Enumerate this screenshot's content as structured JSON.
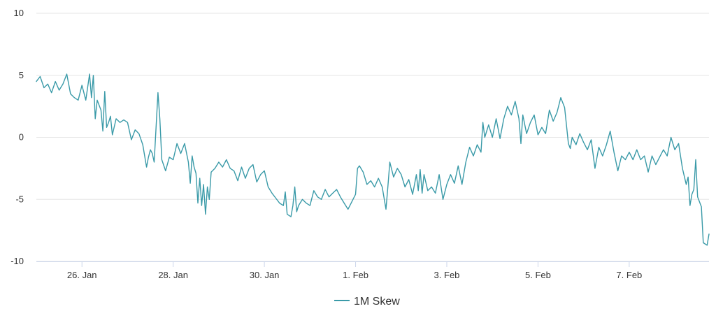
{
  "chart_data": {
    "type": "line",
    "title": "",
    "xlabel": "",
    "ylabel": "",
    "ylim": [
      -10,
      10
    ],
    "y_ticks": [
      10,
      5,
      0,
      -5,
      -10
    ],
    "x_range": [
      "2023-01-25 00:00",
      "2023-02-08 18:00"
    ],
    "x_ticks": [
      {
        "label": "26. Jan",
        "date": "2023-01-26"
      },
      {
        "label": "28. Jan",
        "date": "2023-01-28"
      },
      {
        "label": "30. Jan",
        "date": "2023-01-30"
      },
      {
        "label": "1. Feb",
        "date": "2023-02-01"
      },
      {
        "label": "3. Feb",
        "date": "2023-02-03"
      },
      {
        "label": "5. Feb",
        "date": "2023-02-05"
      },
      {
        "label": "7. Feb",
        "date": "2023-02-07"
      }
    ],
    "grid": "horizontal",
    "legend_position": "bottom-center",
    "series": [
      {
        "name": "1M Skew",
        "color": "#3a9aa8",
        "points": [
          [
            "2023-01-25 00:00",
            4.5
          ],
          [
            "2023-01-25 02:00",
            4.9
          ],
          [
            "2023-01-25 04:00",
            4.0
          ],
          [
            "2023-01-25 06:00",
            4.3
          ],
          [
            "2023-01-25 08:00",
            3.6
          ],
          [
            "2023-01-25 10:00",
            4.5
          ],
          [
            "2023-01-25 12:00",
            3.8
          ],
          [
            "2023-01-25 14:00",
            4.3
          ],
          [
            "2023-01-25 16:00",
            5.1
          ],
          [
            "2023-01-25 18:00",
            3.5
          ],
          [
            "2023-01-25 20:00",
            3.2
          ],
          [
            "2023-01-25 22:00",
            3.0
          ],
          [
            "2023-01-26 00:00",
            4.2
          ],
          [
            "2023-01-26 02:00",
            3.0
          ],
          [
            "2023-01-26 04:00",
            5.1
          ],
          [
            "2023-01-26 05:00",
            3.2
          ],
          [
            "2023-01-26 06:00",
            5.0
          ],
          [
            "2023-01-26 07:00",
            1.5
          ],
          [
            "2023-01-26 08:00",
            3.0
          ],
          [
            "2023-01-26 10:00",
            2.2
          ],
          [
            "2023-01-26 11:00",
            0.5
          ],
          [
            "2023-01-26 12:00",
            3.7
          ],
          [
            "2023-01-26 13:00",
            0.8
          ],
          [
            "2023-01-26 14:00",
            1.2
          ],
          [
            "2023-01-26 15:00",
            1.7
          ],
          [
            "2023-01-26 16:00",
            0.2
          ],
          [
            "2023-01-26 18:00",
            1.5
          ],
          [
            "2023-01-26 20:00",
            1.2
          ],
          [
            "2023-01-26 22:00",
            1.4
          ],
          [
            "2023-01-27 00:00",
            1.2
          ],
          [
            "2023-01-27 02:00",
            -0.2
          ],
          [
            "2023-01-27 04:00",
            0.6
          ],
          [
            "2023-01-27 06:00",
            0.3
          ],
          [
            "2023-01-27 08:00",
            -0.6
          ],
          [
            "2023-01-27 10:00",
            -2.4
          ],
          [
            "2023-01-27 11:00",
            -1.6
          ],
          [
            "2023-01-27 12:00",
            -1.0
          ],
          [
            "2023-01-27 13:00",
            -1.3
          ],
          [
            "2023-01-27 14:00",
            -2.0
          ],
          [
            "2023-01-27 16:00",
            3.6
          ],
          [
            "2023-01-27 17:00",
            1.5
          ],
          [
            "2023-01-27 18:00",
            -1.8
          ],
          [
            "2023-01-27 20:00",
            -2.7
          ],
          [
            "2023-01-27 22:00",
            -1.6
          ],
          [
            "2023-01-28 00:00",
            -1.8
          ],
          [
            "2023-01-28 02:00",
            -0.5
          ],
          [
            "2023-01-28 04:00",
            -1.3
          ],
          [
            "2023-01-28 06:00",
            -0.5
          ],
          [
            "2023-01-28 08:00",
            -2.0
          ],
          [
            "2023-01-28 09:00",
            -3.7
          ],
          [
            "2023-01-28 10:00",
            -1.5
          ],
          [
            "2023-01-28 11:00",
            -2.4
          ],
          [
            "2023-01-28 12:00",
            -2.9
          ],
          [
            "2023-01-28 13:00",
            -5.3
          ],
          [
            "2023-01-28 14:00",
            -3.3
          ],
          [
            "2023-01-28 15:00",
            -5.5
          ],
          [
            "2023-01-28 16:00",
            -3.8
          ],
          [
            "2023-01-28 17:00",
            -6.2
          ],
          [
            "2023-01-28 18:00",
            -4.0
          ],
          [
            "2023-01-28 19:00",
            -5.0
          ],
          [
            "2023-01-28 20:00",
            -2.8
          ],
          [
            "2023-01-28 22:00",
            -2.5
          ],
          [
            "2023-01-29 00:00",
            -2.0
          ],
          [
            "2023-01-29 02:00",
            -2.4
          ],
          [
            "2023-01-29 04:00",
            -1.8
          ],
          [
            "2023-01-29 06:00",
            -2.5
          ],
          [
            "2023-01-29 08:00",
            -2.7
          ],
          [
            "2023-01-29 10:00",
            -3.5
          ],
          [
            "2023-01-29 12:00",
            -2.4
          ],
          [
            "2023-01-29 14:00",
            -3.3
          ],
          [
            "2023-01-29 16:00",
            -2.5
          ],
          [
            "2023-01-29 18:00",
            -2.2
          ],
          [
            "2023-01-29 20:00",
            -3.6
          ],
          [
            "2023-01-29 22:00",
            -3.0
          ],
          [
            "2023-01-30 00:00",
            -2.7
          ],
          [
            "2023-01-30 02:00",
            -4.0
          ],
          [
            "2023-01-30 04:00",
            -4.5
          ],
          [
            "2023-01-30 06:00",
            -4.9
          ],
          [
            "2023-01-30 08:00",
            -5.3
          ],
          [
            "2023-01-30 10:00",
            -5.5
          ],
          [
            "2023-01-30 11:00",
            -4.4
          ],
          [
            "2023-01-30 12:00",
            -6.2
          ],
          [
            "2023-01-30 14:00",
            -6.4
          ],
          [
            "2023-01-30 15:00",
            -5.5
          ],
          [
            "2023-01-30 16:00",
            -4.0
          ],
          [
            "2023-01-30 17:00",
            -6.0
          ],
          [
            "2023-01-30 18:00",
            -5.5
          ],
          [
            "2023-01-30 20:00",
            -5.0
          ],
          [
            "2023-01-30 22:00",
            -5.3
          ],
          [
            "2023-01-31 00:00",
            -5.5
          ],
          [
            "2023-01-31 02:00",
            -4.3
          ],
          [
            "2023-01-31 04:00",
            -4.8
          ],
          [
            "2023-01-31 06:00",
            -5.0
          ],
          [
            "2023-01-31 08:00",
            -4.2
          ],
          [
            "2023-01-31 10:00",
            -4.8
          ],
          [
            "2023-01-31 12:00",
            -4.5
          ],
          [
            "2023-01-31 14:00",
            -4.2
          ],
          [
            "2023-01-31 16:00",
            -4.8
          ],
          [
            "2023-01-31 18:00",
            -5.3
          ],
          [
            "2023-01-31 20:00",
            -5.8
          ],
          [
            "2023-01-31 22:00",
            -5.2
          ],
          [
            "2023-02-01 00:00",
            -4.6
          ],
          [
            "2023-02-01 01:00",
            -2.5
          ],
          [
            "2023-02-01 02:00",
            -2.3
          ],
          [
            "2023-02-01 04:00",
            -2.8
          ],
          [
            "2023-02-01 06:00",
            -3.8
          ],
          [
            "2023-02-01 08:00",
            -3.5
          ],
          [
            "2023-02-01 10:00",
            -4.0
          ],
          [
            "2023-02-01 12:00",
            -3.3
          ],
          [
            "2023-02-01 14:00",
            -4.0
          ],
          [
            "2023-02-01 16:00",
            -5.8
          ],
          [
            "2023-02-01 17:00",
            -4.0
          ],
          [
            "2023-02-01 18:00",
            -2.0
          ],
          [
            "2023-02-01 20:00",
            -3.2
          ],
          [
            "2023-02-01 22:00",
            -2.5
          ],
          [
            "2023-02-02 00:00",
            -3.0
          ],
          [
            "2023-02-02 02:00",
            -4.0
          ],
          [
            "2023-02-02 04:00",
            -3.4
          ],
          [
            "2023-02-02 06:00",
            -4.6
          ],
          [
            "2023-02-02 08:00",
            -3.0
          ],
          [
            "2023-02-02 09:00",
            -4.3
          ],
          [
            "2023-02-02 10:00",
            -2.6
          ],
          [
            "2023-02-02 11:00",
            -4.5
          ],
          [
            "2023-02-02 12:00",
            -3.0
          ],
          [
            "2023-02-02 14:00",
            -4.3
          ],
          [
            "2023-02-02 16:00",
            -4.0
          ],
          [
            "2023-02-02 18:00",
            -4.5
          ],
          [
            "2023-02-02 20:00",
            -3.0
          ],
          [
            "2023-02-02 22:00",
            -5.0
          ],
          [
            "2023-02-03 00:00",
            -3.8
          ],
          [
            "2023-02-03 02:00",
            -3.0
          ],
          [
            "2023-02-03 04:00",
            -3.7
          ],
          [
            "2023-02-03 06:00",
            -2.3
          ],
          [
            "2023-02-03 08:00",
            -3.8
          ],
          [
            "2023-02-03 10:00",
            -2.0
          ],
          [
            "2023-02-03 12:00",
            -0.8
          ],
          [
            "2023-02-03 14:00",
            -1.5
          ],
          [
            "2023-02-03 16:00",
            -0.6
          ],
          [
            "2023-02-03 18:00",
            -1.2
          ],
          [
            "2023-02-03 19:00",
            1.2
          ],
          [
            "2023-02-03 20:00",
            0.0
          ],
          [
            "2023-02-03 22:00",
            1.0
          ],
          [
            "2023-02-04 00:00",
            0.0
          ],
          [
            "2023-02-04 02:00",
            1.5
          ],
          [
            "2023-02-04 04:00",
            -0.1
          ],
          [
            "2023-02-04 06:00",
            1.5
          ],
          [
            "2023-02-04 08:00",
            2.5
          ],
          [
            "2023-02-04 10:00",
            1.8
          ],
          [
            "2023-02-04 12:00",
            2.9
          ],
          [
            "2023-02-04 14:00",
            1.5
          ],
          [
            "2023-02-04 15:00",
            -0.5
          ],
          [
            "2023-02-04 16:00",
            1.8
          ],
          [
            "2023-02-04 18:00",
            0.3
          ],
          [
            "2023-02-04 20:00",
            1.2
          ],
          [
            "2023-02-04 22:00",
            1.8
          ],
          [
            "2023-02-05 00:00",
            0.2
          ],
          [
            "2023-02-05 02:00",
            0.8
          ],
          [
            "2023-02-05 04:00",
            0.3
          ],
          [
            "2023-02-05 06:00",
            2.2
          ],
          [
            "2023-02-05 08:00",
            1.3
          ],
          [
            "2023-02-05 10:00",
            2.0
          ],
          [
            "2023-02-05 12:00",
            3.2
          ],
          [
            "2023-02-05 14:00",
            2.4
          ],
          [
            "2023-02-05 16:00",
            -0.5
          ],
          [
            "2023-02-05 17:00",
            -0.9
          ],
          [
            "2023-02-05 18:00",
            0.0
          ],
          [
            "2023-02-05 20:00",
            -0.6
          ],
          [
            "2023-02-05 22:00",
            0.3
          ],
          [
            "2023-02-06 00:00",
            -0.4
          ],
          [
            "2023-02-06 02:00",
            -1.0
          ],
          [
            "2023-02-06 04:00",
            -0.2
          ],
          [
            "2023-02-06 06:00",
            -2.5
          ],
          [
            "2023-02-06 08:00",
            -0.8
          ],
          [
            "2023-02-06 10:00",
            -1.5
          ],
          [
            "2023-02-06 12:00",
            -0.6
          ],
          [
            "2023-02-06 14:00",
            0.5
          ],
          [
            "2023-02-06 16:00",
            -1.2
          ],
          [
            "2023-02-06 18:00",
            -2.7
          ],
          [
            "2023-02-06 20:00",
            -1.5
          ],
          [
            "2023-02-06 22:00",
            -1.8
          ],
          [
            "2023-02-07 00:00",
            -1.2
          ],
          [
            "2023-02-07 02:00",
            -1.8
          ],
          [
            "2023-02-07 04:00",
            -1.0
          ],
          [
            "2023-02-07 06:00",
            -1.8
          ],
          [
            "2023-02-07 08:00",
            -1.5
          ],
          [
            "2023-02-07 10:00",
            -2.8
          ],
          [
            "2023-02-07 12:00",
            -1.5
          ],
          [
            "2023-02-07 14:00",
            -2.2
          ],
          [
            "2023-02-07 16:00",
            -1.6
          ],
          [
            "2023-02-07 18:00",
            -1.0
          ],
          [
            "2023-02-07 20:00",
            -1.5
          ],
          [
            "2023-02-07 22:00",
            0.0
          ],
          [
            "2023-02-08 00:00",
            -1.0
          ],
          [
            "2023-02-08 02:00",
            -0.5
          ],
          [
            "2023-02-08 04:00",
            -2.5
          ],
          [
            "2023-02-08 06:00",
            -3.8
          ],
          [
            "2023-02-08 07:00",
            -3.2
          ],
          [
            "2023-02-08 08:00",
            -5.5
          ],
          [
            "2023-02-08 09:00",
            -4.6
          ],
          [
            "2023-02-08 10:00",
            -4.2
          ],
          [
            "2023-02-08 11:00",
            -1.8
          ],
          [
            "2023-02-08 12:00",
            -4.8
          ],
          [
            "2023-02-08 14:00",
            -5.6
          ],
          [
            "2023-02-08 15:00",
            -8.5
          ],
          [
            "2023-02-08 17:00",
            -8.7
          ],
          [
            "2023-02-08 18:00",
            -7.8
          ]
        ]
      }
    ]
  }
}
